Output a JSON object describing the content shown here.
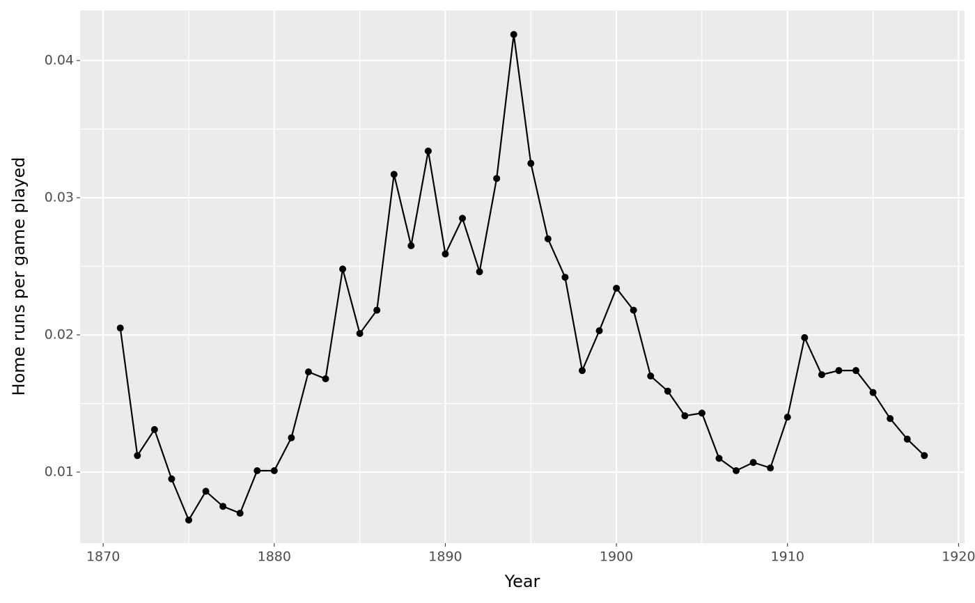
{
  "chart_data": {
    "type": "line",
    "x_label": "Year",
    "y_label": "Home runs per game played",
    "x": [
      1871,
      1872,
      1873,
      1874,
      1875,
      1876,
      1877,
      1878,
      1879,
      1880,
      1881,
      1882,
      1883,
      1884,
      1885,
      1886,
      1887,
      1888,
      1889,
      1890,
      1891,
      1892,
      1893,
      1894,
      1895,
      1896,
      1897,
      1898,
      1899,
      1900,
      1901,
      1902,
      1903,
      1904,
      1905,
      1906,
      1907,
      1908,
      1909,
      1910,
      1911,
      1912,
      1913,
      1914,
      1915,
      1916,
      1917,
      1918
    ],
    "series": [
      {
        "color": "#000000",
        "values": [
          0.0205,
          0.0112,
          0.0131,
          0.0095,
          0.0065,
          0.0086,
          0.0075,
          0.007,
          0.0101,
          0.0101,
          0.0125,
          0.0173,
          0.0168,
          0.0248,
          0.0201,
          0.0218,
          0.0317,
          0.0265,
          0.0334,
          0.0259,
          0.0285,
          0.0246,
          0.0314,
          0.0419,
          0.0325,
          0.027,
          0.0242,
          0.0174,
          0.0203,
          0.0234,
          0.0218,
          0.017,
          0.0159,
          0.0141,
          0.0143,
          0.011,
          0.0101,
          0.0107,
          0.0103,
          0.014,
          0.0198,
          0.0171,
          0.0174,
          0.0174,
          0.0158,
          0.0139,
          0.0124,
          0.0112
        ]
      }
    ],
    "xlim": [
      1868.65,
      1920.35
    ],
    "xticks": [
      1870,
      1880,
      1890,
      1900,
      1910,
      1920
    ],
    "ylim": [
      0.00482,
      0.04365
    ],
    "yticks": [
      0.01,
      0.02,
      0.03,
      0.04
    ],
    "grid": true,
    "panel_color": "#ebebeb"
  }
}
